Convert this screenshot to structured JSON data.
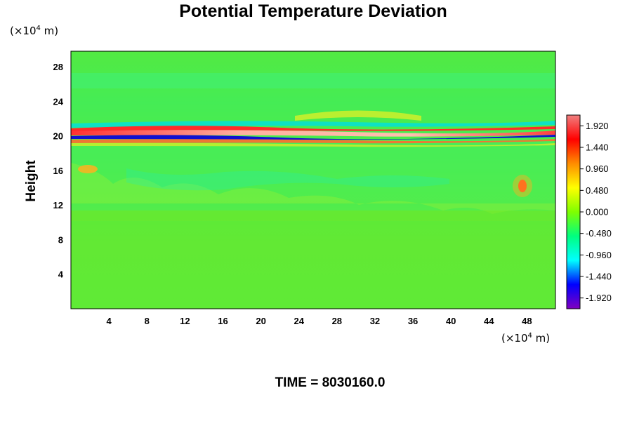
{
  "chart_data": {
    "type": "heatmap",
    "title": "Potential Temperature Deviation",
    "ylabel": "Height",
    "y_unit_prefix": "(×10",
    "y_unit_exp": "4",
    "y_unit_suffix": " m)",
    "x_unit_prefix": "(×10",
    "x_unit_exp": "4",
    "x_unit_suffix": " m)",
    "xlim": [
      0,
      51
    ],
    "ylim": [
      0,
      29.8
    ],
    "x_ticks": [
      4,
      8,
      12,
      16,
      20,
      24,
      28,
      32,
      36,
      40,
      44,
      48
    ],
    "y_ticks": [
      4,
      8,
      12,
      16,
      20,
      24,
      28
    ],
    "colorbar": {
      "min": -2.16,
      "max": 2.16,
      "ticks": [
        "1.920",
        "1.440",
        "0.960",
        "0.480",
        "0.000",
        "-0.480",
        "-0.960",
        "-1.440",
        "-1.920"
      ],
      "colors": [
        "#f08080",
        "#ff0000",
        "#ff8c00",
        "#ffff00",
        "#7fff00",
        "#00ff7f",
        "#00ffff",
        "#0000ff",
        "#8000c0"
      ]
    },
    "time_label": "TIME = 8030160.0"
  }
}
